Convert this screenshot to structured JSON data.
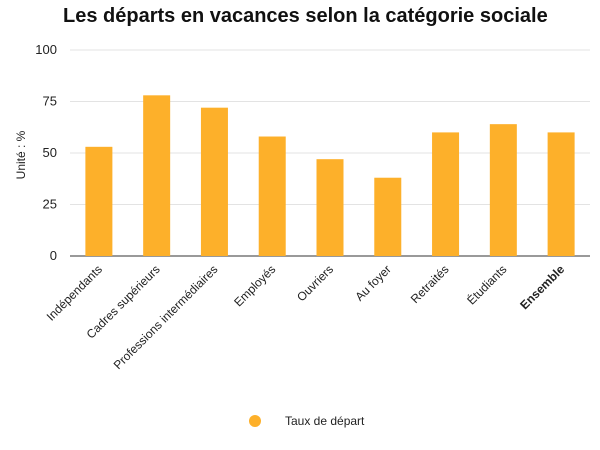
{
  "chart_data": {
    "type": "bar",
    "title": "Les départs en vacances selon la catégorie sociale",
    "ylabel": "Unité : %",
    "xlabel": "",
    "ylim": [
      0,
      100
    ],
    "yticks": [
      0,
      25,
      50,
      75,
      100
    ],
    "grid": true,
    "legend_position": "bottom",
    "categories": [
      "Indépendants",
      "Cadres supérieurs",
      "Professions intermédiaires",
      "Employés",
      "Ouvriers",
      "Au foyer",
      "Retraités",
      "Étudiants",
      "Ensemble"
    ],
    "bold_categories": [
      "Ensemble"
    ],
    "series": [
      {
        "name": "Taux de départ",
        "color": "#FDB02A",
        "values": [
          53,
          78,
          72,
          58,
          47,
          38,
          60,
          64,
          60
        ]
      }
    ]
  }
}
